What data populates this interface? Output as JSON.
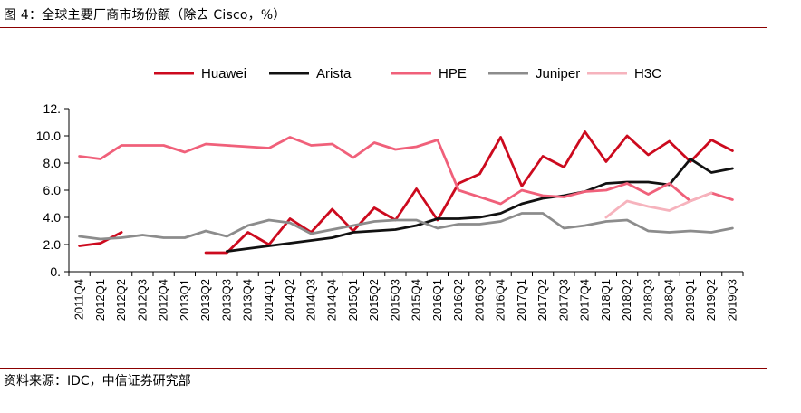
{
  "figure": {
    "title": "图 4：全球主要厂商市场份额（除去 Cisco，%）",
    "source": "资料来源：IDC，中信证券研究部"
  },
  "chart_data": {
    "type": "line",
    "title": "",
    "xlabel": "",
    "ylabel": "",
    "ylim": [
      0,
      12
    ],
    "yticks": [
      0,
      2,
      4,
      6,
      8,
      10,
      12
    ],
    "ytick_labels": [
      "0.",
      "2.0",
      "4.0",
      "6.0",
      "8.0",
      "10.0",
      "12."
    ],
    "grid": false,
    "legend_position": "top",
    "categories": [
      "2011Q4",
      "2012Q1",
      "2012Q2",
      "2012Q3",
      "2012Q4",
      "2013Q1",
      "2013Q2",
      "2013Q3",
      "2013Q4",
      "2014Q1",
      "2014Q2",
      "2014Q3",
      "2014Q4",
      "2015Q1",
      "2015Q2",
      "2015Q3",
      "2015Q4",
      "2016Q1",
      "2016Q2",
      "2016Q3",
      "2016Q4",
      "2017Q1",
      "2017Q2",
      "2017Q3",
      "2017Q4",
      "2018Q1",
      "2018Q2",
      "2018Q3",
      "2018Q4",
      "2019Q1",
      "2019Q2",
      "2019Q3"
    ],
    "series": [
      {
        "name": "Huawei",
        "color": "#cc0a1e",
        "width": 2.8,
        "values": [
          1.9,
          2.1,
          2.9,
          null,
          null,
          null,
          1.4,
          1.4,
          2.9,
          2.0,
          3.9,
          2.9,
          4.6,
          3.0,
          4.7,
          3.8,
          6.1,
          3.8,
          6.5,
          7.2,
          9.9,
          6.3,
          8.5,
          7.7,
          10.3,
          8.1,
          10.0,
          8.6,
          9.6,
          8.1,
          9.7,
          8.9
        ]
      },
      {
        "name": "Arista",
        "color": "#111111",
        "width": 2.8,
        "values": [
          null,
          null,
          null,
          null,
          null,
          null,
          null,
          1.5,
          1.7,
          1.9,
          2.1,
          2.3,
          2.5,
          2.9,
          3.0,
          3.1,
          3.4,
          3.9,
          3.9,
          4.0,
          4.3,
          5.0,
          5.4,
          5.6,
          5.9,
          6.5,
          6.6,
          6.6,
          6.4,
          8.3,
          7.3,
          7.6
        ]
      },
      {
        "name": "HPE",
        "color": "#f0607a",
        "width": 2.8,
        "values": [
          8.5,
          8.3,
          9.3,
          9.3,
          9.3,
          8.8,
          9.4,
          9.3,
          9.2,
          9.1,
          9.9,
          9.3,
          9.4,
          8.4,
          9.5,
          9.0,
          9.2,
          9.7,
          6.0,
          5.5,
          5.0,
          6.0,
          5.6,
          5.5,
          5.9,
          6.0,
          6.5,
          5.7,
          6.5,
          5.2,
          5.8,
          5.3
        ]
      },
      {
        "name": "Juniper",
        "color": "#8c8c8c",
        "width": 2.8,
        "values": [
          2.6,
          2.4,
          2.5,
          2.7,
          2.5,
          2.5,
          3.0,
          2.6,
          3.4,
          3.8,
          3.6,
          2.8,
          3.1,
          3.4,
          3.7,
          3.8,
          3.8,
          3.2,
          3.5,
          3.5,
          3.7,
          4.3,
          4.3,
          3.2,
          3.4,
          3.7,
          3.8,
          3.0,
          2.9,
          3.0,
          2.9,
          3.2
        ]
      },
      {
        "name": "H3C",
        "color": "#f6b3bd",
        "width": 2.8,
        "values": [
          null,
          null,
          null,
          null,
          null,
          null,
          null,
          null,
          null,
          null,
          null,
          null,
          null,
          null,
          null,
          null,
          null,
          null,
          null,
          null,
          null,
          null,
          null,
          null,
          null,
          4.0,
          5.2,
          4.8,
          4.5,
          5.2,
          5.8,
          null
        ]
      }
    ]
  }
}
